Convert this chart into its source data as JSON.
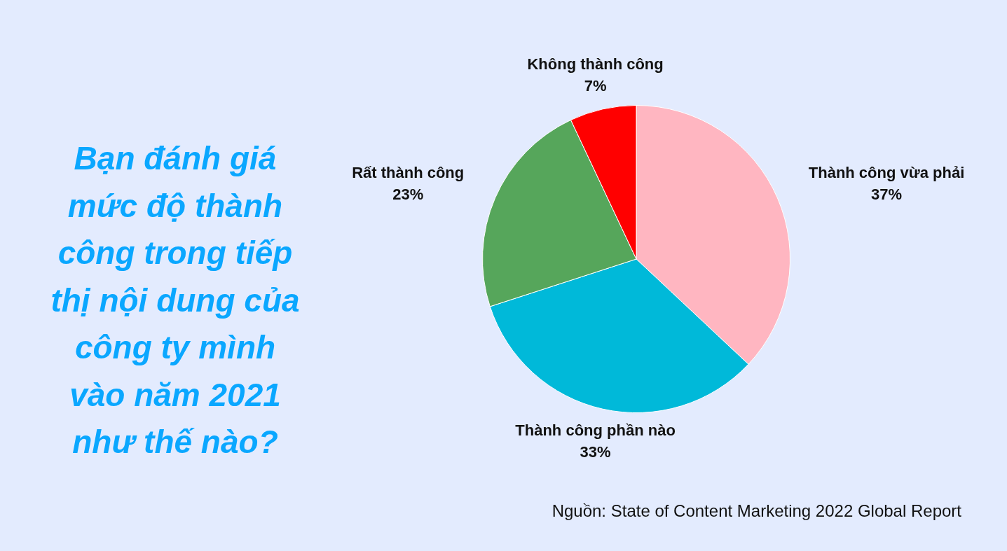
{
  "chart_data": {
    "type": "pie",
    "title": "Bạn đánh giá mức độ thành công trong tiếp thị nội dung của công ty mình vào năm 2021 như thế nào?",
    "categories": [
      "Thành công vừa phải",
      "Thành công phần nào",
      "Rất thành công",
      "Không thành công"
    ],
    "values": [
      37,
      33,
      23,
      7
    ],
    "value_labels": [
      "37%",
      "33%",
      "23%",
      "7%"
    ],
    "colors": [
      "#ffb6c1",
      "#00b9d9",
      "#56a65b",
      "#ff0000"
    ],
    "annotations": [
      "Nguồn: State of Content Marketing 2022 Global Report"
    ]
  }
}
